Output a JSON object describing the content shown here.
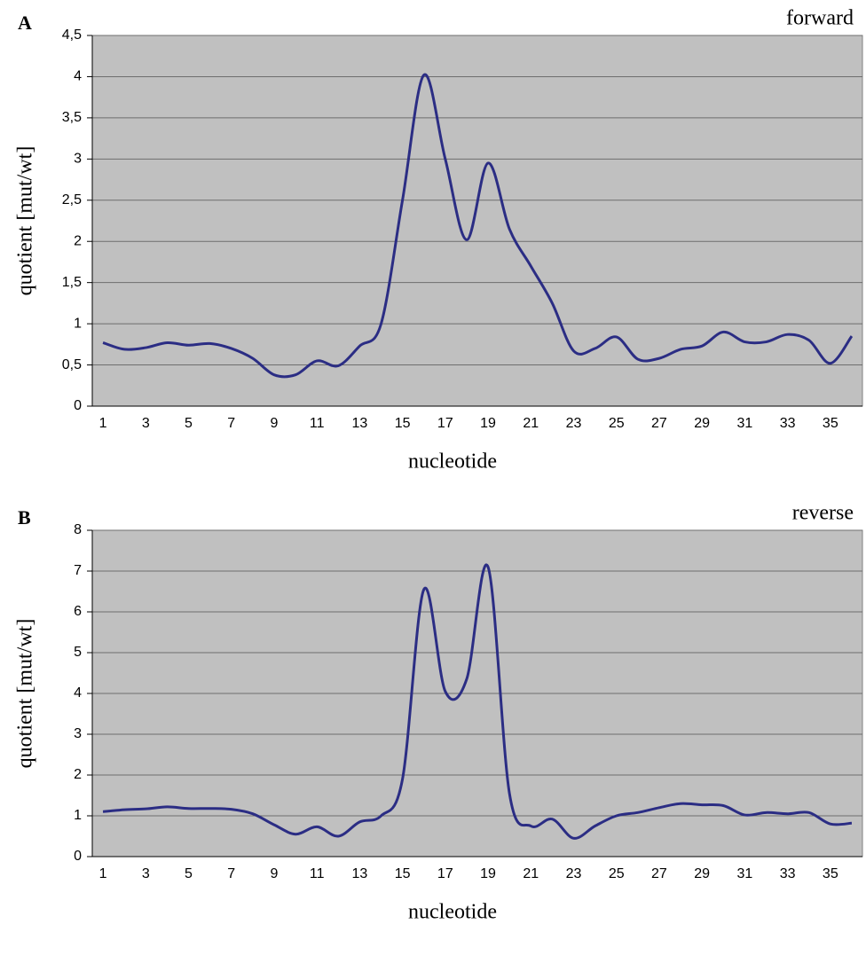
{
  "chart_data": [
    {
      "type": "line",
      "panel": "A",
      "title": "forward",
      "ylabel": "quotient [mut/wt]",
      "xlabel": "nucleotide",
      "categories": [
        "1",
        null,
        "3",
        null,
        "5",
        null,
        "7",
        null,
        "9",
        null,
        "11",
        null,
        "13",
        null,
        "15",
        null,
        "17",
        null,
        "19",
        null,
        "21",
        null,
        "23",
        null,
        "25",
        null,
        "27",
        null,
        "29",
        null,
        "31",
        null,
        "33",
        null,
        "35",
        null
      ],
      "series": [
        {
          "name": "forward",
          "color": "#2b2d84",
          "values": [
            0.77,
            0.69,
            0.71,
            0.77,
            0.74,
            0.76,
            0.7,
            0.58,
            0.38,
            0.38,
            0.55,
            0.49,
            0.73,
            1.0,
            2.5,
            4.02,
            3.0,
            2.02,
            2.95,
            2.15,
            1.7,
            1.25,
            0.67,
            0.7,
            0.84,
            0.57,
            0.58,
            0.69,
            0.73,
            0.9,
            0.78,
            0.78,
            0.87,
            0.8,
            0.52,
            0.85
          ]
        }
      ],
      "ylim": [
        0,
        4.5
      ],
      "yticks": [
        0,
        {
          "value": 0.5,
          "label": "0,5"
        },
        1,
        {
          "value": 1.5,
          "label": "1,5"
        },
        2,
        {
          "value": 2.5,
          "label": "2,5"
        },
        3,
        {
          "value": 3.5,
          "label": "3,5"
        },
        4,
        {
          "value": 4.5,
          "label": "4,5"
        }
      ],
      "grid": true,
      "background": "#c0c0c0"
    },
    {
      "type": "line",
      "panel": "B",
      "title": "reverse",
      "ylabel": "quotient [mut/wt]",
      "xlabel": "nucleotide",
      "categories": [
        "1",
        null,
        "3",
        null,
        "5",
        null,
        "7",
        null,
        "9",
        null,
        "11",
        null,
        "13",
        null,
        "15",
        null,
        "17",
        null,
        "19",
        null,
        "21",
        null,
        "23",
        null,
        "25",
        null,
        "27",
        null,
        "29",
        null,
        "31",
        null,
        "33",
        null,
        "35",
        null
      ],
      "series": [
        {
          "name": "reverse",
          "color": "#2b2d84",
          "values": [
            1.1,
            1.15,
            1.17,
            1.22,
            1.18,
            1.18,
            1.16,
            1.05,
            0.78,
            0.55,
            0.73,
            0.5,
            0.85,
            1.0,
            1.9,
            6.55,
            4.05,
            4.35,
            7.1,
            1.55,
            0.75,
            0.92,
            0.45,
            0.75,
            1.0,
            1.08,
            1.2,
            1.3,
            1.27,
            1.25,
            1.02,
            1.08,
            1.05,
            1.08,
            0.8,
            0.82
          ]
        }
      ],
      "ylim": [
        0,
        8
      ],
      "yticks": [
        0,
        1,
        2,
        3,
        4,
        5,
        6,
        7,
        8
      ],
      "grid": true,
      "background": "#c0c0c0"
    }
  ]
}
